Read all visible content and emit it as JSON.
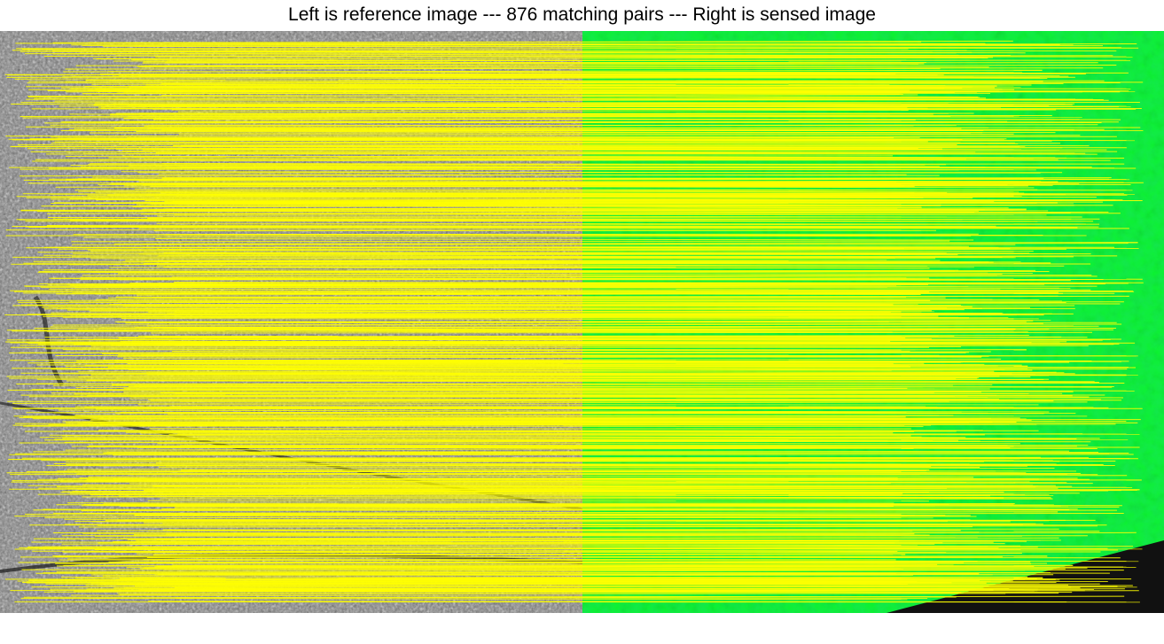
{
  "figure": {
    "title": "Left is reference image --- 876 matching pairs --- Right is sensed image",
    "match_count": 876,
    "left_image": "reference-image",
    "right_image": "sensed-image",
    "colors": {
      "background": "#ffffff",
      "reference_tone": "#7f7f7f",
      "sensed_tone": "#14e850",
      "match_line": "#ffff00",
      "void_region": "#111111"
    }
  }
}
